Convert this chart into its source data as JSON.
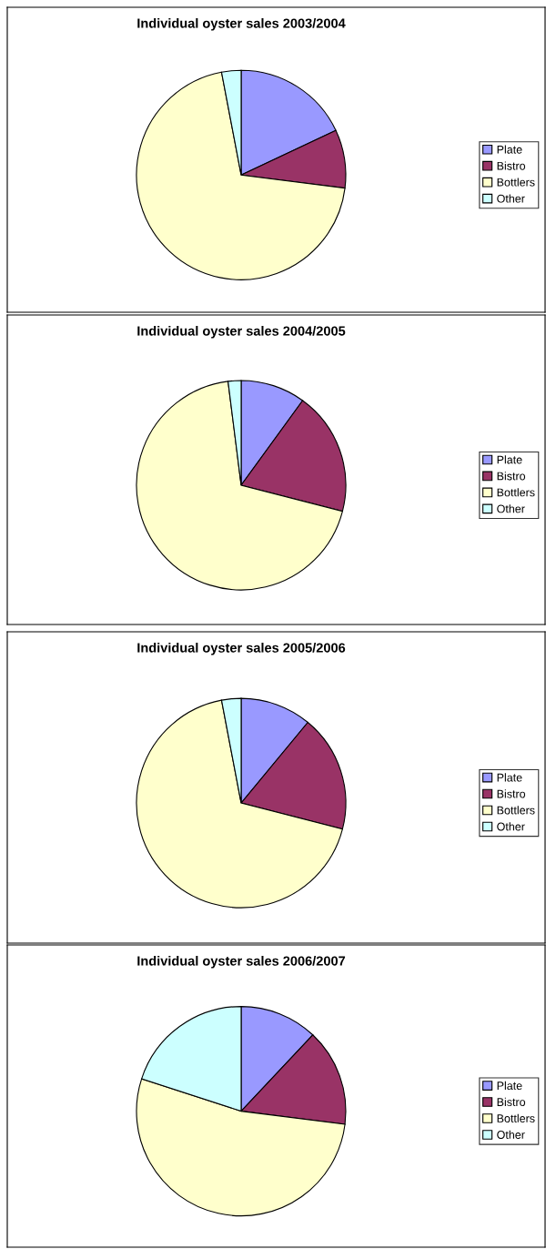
{
  "chart_data": [
    {
      "type": "pie",
      "title": "Individual oyster sales 2003/2004",
      "categories": [
        "Plate",
        "Bistro",
        "Bottlers",
        "Other"
      ],
      "values": [
        18,
        9,
        70,
        3
      ],
      "colors": [
        "#9999ff",
        "#993366",
        "#ffffcc",
        "#ccffff"
      ],
      "legend": "right"
    },
    {
      "type": "pie",
      "title": "Individual oyster sales 2004/2005",
      "categories": [
        "Plate",
        "Bistro",
        "Bottlers",
        "Other"
      ],
      "values": [
        10,
        19,
        69,
        2
      ],
      "colors": [
        "#9999ff",
        "#993366",
        "#ffffcc",
        "#ccffff"
      ],
      "legend": "right"
    },
    {
      "type": "pie",
      "title": "Individual oyster sales 2005/2006",
      "categories": [
        "Plate",
        "Bistro",
        "Bottlers",
        "Other"
      ],
      "values": [
        11,
        18,
        68,
        3
      ],
      "colors": [
        "#9999ff",
        "#993366",
        "#ffffcc",
        "#ccffff"
      ],
      "legend": "right"
    },
    {
      "type": "pie",
      "title": "Individual oyster sales 2006/2007",
      "categories": [
        "Plate",
        "Bistro",
        "Bottlers",
        "Other"
      ],
      "values": [
        12,
        15,
        53,
        20
      ],
      "colors": [
        "#9999ff",
        "#993366",
        "#ffffcc",
        "#ccffff"
      ],
      "legend": "right"
    }
  ]
}
